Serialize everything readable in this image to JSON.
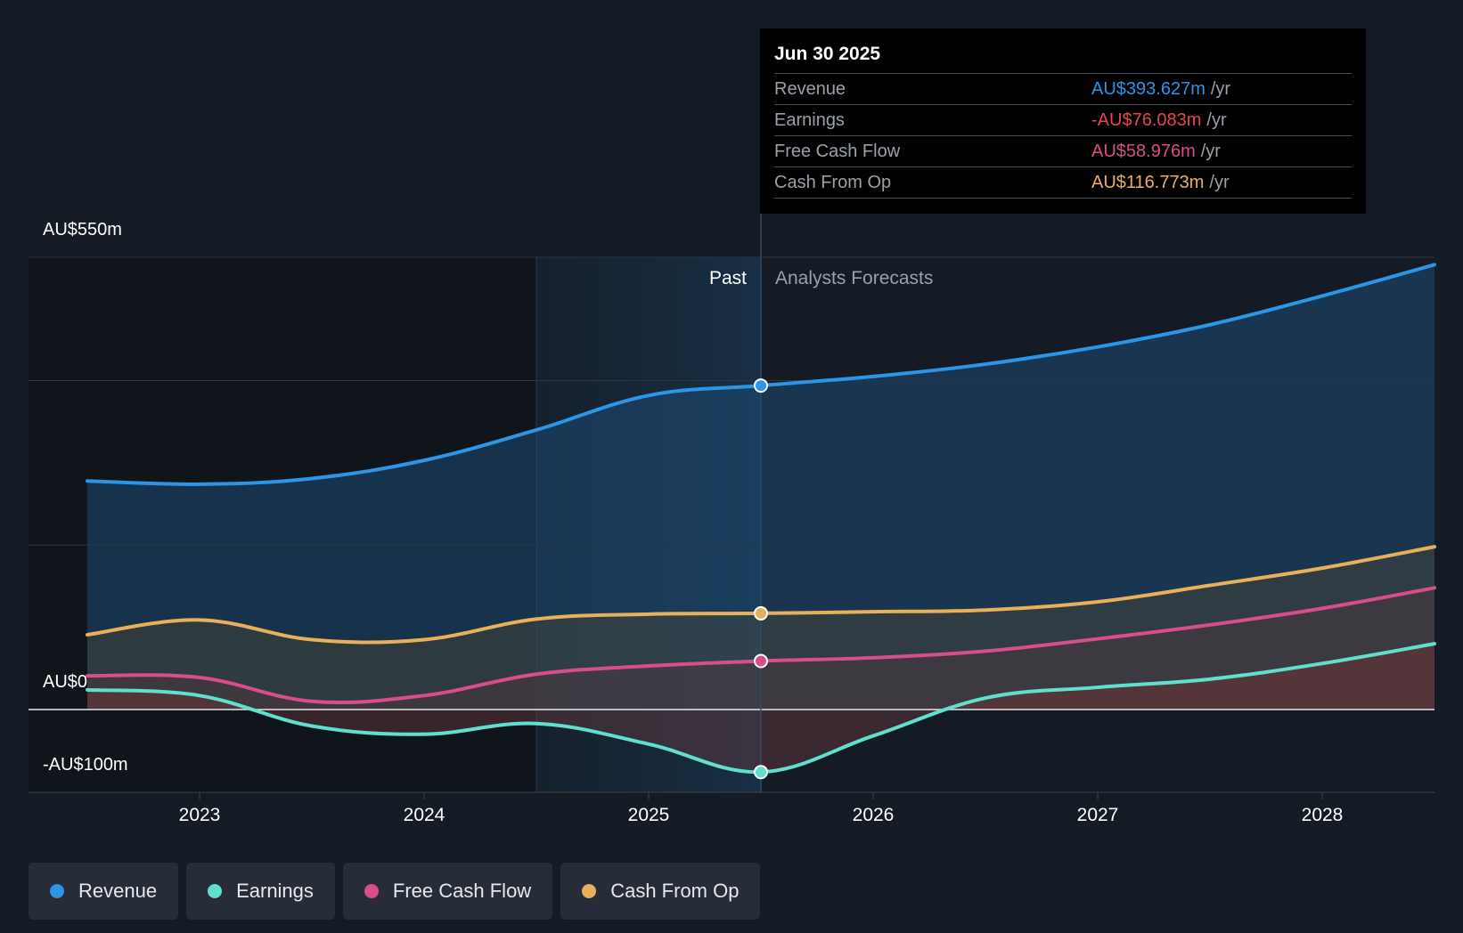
{
  "tooltip": {
    "date": "Jun 30 2025",
    "rows": [
      {
        "label": "Revenue",
        "value": "AU$393.627m",
        "unit": "/yr",
        "color": "#2b95e8"
      },
      {
        "label": "Earnings",
        "value": "-AU$76.083m",
        "unit": "/yr",
        "color": "#e8454f"
      },
      {
        "label": "Free Cash Flow",
        "value": "AU$58.976m",
        "unit": "/yr",
        "color": "#d84d8c"
      },
      {
        "label": "Cash From Op",
        "value": "AU$116.773m",
        "unit": "/yr",
        "color": "#e8b05a"
      }
    ]
  },
  "legend": [
    {
      "label": "Revenue",
      "color": "#2b95e8"
    },
    {
      "label": "Earnings",
      "color": "#5fe0cf"
    },
    {
      "label": "Free Cash Flow",
      "color": "#d84d8c"
    },
    {
      "label": "Cash From Op",
      "color": "#e8b05a"
    }
  ],
  "chart_data": {
    "type": "line",
    "title": "",
    "y_tick_labels": [
      "AU$550m",
      "AU$0",
      "-AU$100m"
    ],
    "ylim": [
      -100,
      550
    ],
    "x_tick_labels": [
      "2023",
      "2024",
      "2025",
      "2026",
      "2027",
      "2028"
    ],
    "x_tick_values": [
      2023,
      2024,
      2025,
      2026,
      2027,
      2028
    ],
    "xlim": [
      2022.25,
      2028.5
    ],
    "past_label": "Past",
    "forecast_label": "Analysts Forecasts",
    "divider_x": 2025.5,
    "highlight_start_x": 2024.5,
    "series": [
      {
        "name": "Revenue",
        "color": "#2b95e8",
        "x": [
          2022.5,
          2023.0,
          2023.5,
          2024.0,
          2024.5,
          2025.0,
          2025.5,
          2026.0,
          2026.5,
          2027.0,
          2027.5,
          2028.0,
          2028.5
        ],
        "y": [
          278,
          274,
          281,
          303,
          340,
          382,
          394,
          405,
          420,
          441,
          468,
          503,
          541
        ]
      },
      {
        "name": "Earnings",
        "color": "#5fe0cf",
        "x": [
          2022.5,
          2023.0,
          2023.5,
          2024.0,
          2024.5,
          2025.0,
          2025.5,
          2026.0,
          2026.5,
          2027.0,
          2027.5,
          2028.0,
          2028.5
        ],
        "y": [
          24,
          17,
          -20,
          -30,
          -17,
          -42,
          -76,
          -32,
          14,
          27,
          37,
          56,
          80
        ]
      },
      {
        "name": "Free Cash Flow",
        "color": "#d84d8c",
        "x": [
          2022.5,
          2023.0,
          2023.5,
          2024.0,
          2024.5,
          2025.0,
          2025.5,
          2026.0,
          2026.5,
          2027.0,
          2027.5,
          2028.0,
          2028.5
        ],
        "y": [
          41,
          39,
          10,
          17,
          43,
          53,
          59,
          63,
          71,
          86,
          103,
          123,
          148
        ]
      },
      {
        "name": "Cash From Op",
        "color": "#e8b05a",
        "x": [
          2022.5,
          2023.0,
          2023.5,
          2024.0,
          2024.5,
          2025.0,
          2025.5,
          2026.0,
          2026.5,
          2027.0,
          2027.5,
          2028.0,
          2028.5
        ],
        "y": [
          91,
          109,
          85,
          85,
          110,
          116,
          117,
          119,
          121,
          131,
          151,
          172,
          198
        ]
      }
    ],
    "marker_x": 2025.5
  }
}
